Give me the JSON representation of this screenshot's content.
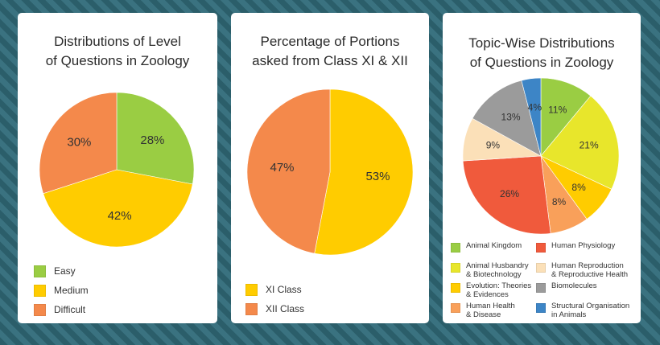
{
  "chart_data": [
    {
      "type": "pie",
      "title": "Distributions of Level\nof Questions in Zoology",
      "slices": [
        {
          "label": "Easy",
          "value": 28,
          "value_label": "28%",
          "color": "#9acd43"
        },
        {
          "label": "Medium",
          "value": 42,
          "value_label": "42%",
          "color": "#ffcc00"
        },
        {
          "label": "Difficult",
          "value": 30,
          "value_label": "30%",
          "color": "#f4894b"
        }
      ],
      "legend_position": "bottom"
    },
    {
      "type": "pie",
      "title": "Percentage of Portions\nasked from Class XI & XII",
      "slices": [
        {
          "label": "XI Class",
          "value": 53,
          "value_label": "53%",
          "color": "#ffcc00"
        },
        {
          "label": "XII Class",
          "value": 47,
          "value_label": "47%",
          "color": "#f4894b"
        }
      ],
      "legend_position": "bottom"
    },
    {
      "type": "pie",
      "title": "Topic-Wise Distributions\nof Questions in Zoology",
      "slices": [
        {
          "label": "Animal Kingdom",
          "value": 11,
          "value_label": "11%",
          "color": "#9acd43"
        },
        {
          "label": "Animal Husbandry\n& Biotechnology",
          "value": 21,
          "value_label": "21%",
          "color": "#e8e62b"
        },
        {
          "label": "Evolution: Theories\n& Evidences",
          "value": 8,
          "value_label": "8%",
          "color": "#ffcc00"
        },
        {
          "label": "Human Health\n& Disease",
          "value": 8,
          "value_label": "8%",
          "color": "#f9a05a"
        },
        {
          "label": "Human Physiology",
          "value": 26,
          "value_label": "26%",
          "color": "#f05a3c"
        },
        {
          "label": "Human Reproduction\n& Reproductive Health",
          "value": 9,
          "value_label": "9%",
          "color": "#fbe0b8"
        },
        {
          "label": "Biomolecules",
          "value": 13,
          "value_label": "13%",
          "color": "#9b9b9b"
        },
        {
          "label": "Structural Organisation\nin Animals",
          "value": 4,
          "value_label": "4%",
          "color": "#3d85c6"
        }
      ],
      "legend_position": "bottom"
    }
  ]
}
